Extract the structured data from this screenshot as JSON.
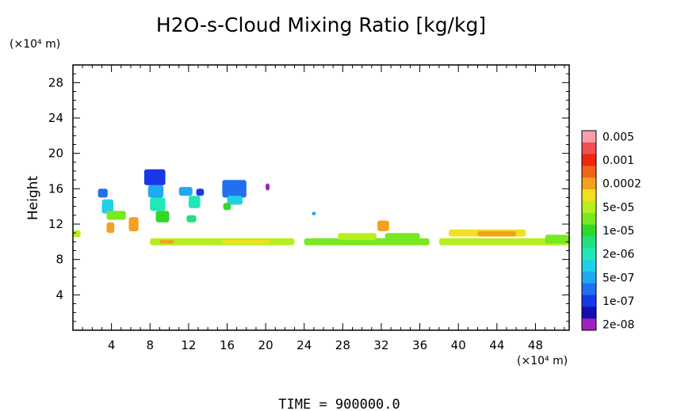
{
  "chart_data": {
    "type": "heatmap",
    "title": "H2O-s-Cloud Mixing Ratio [kg/kg]",
    "ylabel": "Height",
    "x_unit_label": "(×10⁴ m)",
    "y_unit_label": "(×10⁴ m)",
    "xlim": [
      0,
      51.5
    ],
    "ylim": [
      0,
      30
    ],
    "x_ticks": [
      4,
      8,
      12,
      16,
      20,
      24,
      28,
      32,
      36,
      40,
      44,
      48
    ],
    "y_ticks": [
      4,
      8,
      12,
      16,
      20,
      24,
      28
    ],
    "grid": false,
    "footer": "TIME = 900000.0",
    "colorbar": {
      "placement": "right",
      "levels": [
        {
          "label": "0.005",
          "color": "#f5a0a8"
        },
        {
          "label": "",
          "color": "#f05050"
        },
        {
          "label": "0.001",
          "color": "#ee2810"
        },
        {
          "label": "",
          "color": "#f06418"
        },
        {
          "label": "0.0002",
          "color": "#f5a020"
        },
        {
          "label": "",
          "color": "#f0e020"
        },
        {
          "label": "5e-05",
          "color": "#b8ee20"
        },
        {
          "label": "",
          "color": "#78e820"
        },
        {
          "label": "1e-05",
          "color": "#30d828"
        },
        {
          "label": "",
          "color": "#20e080"
        },
        {
          "label": "2e-06",
          "color": "#20e8b8"
        },
        {
          "label": "",
          "color": "#20d0e8"
        },
        {
          "label": "5e-07",
          "color": "#20a8f0"
        },
        {
          "label": "",
          "color": "#2070f0"
        },
        {
          "label": "1e-07",
          "color": "#1838e8"
        },
        {
          "label": "",
          "color": "#1010b0"
        },
        {
          "label": "2e-08",
          "color": "#a020c0"
        }
      ]
    },
    "regions": [
      {
        "x0": 0.0,
        "x1": 0.8,
        "y0": 10.5,
        "y1": 11.3,
        "level": 6
      },
      {
        "x0": 2.6,
        "x1": 3.6,
        "y0": 15.0,
        "y1": 16.0,
        "level": 13
      },
      {
        "x0": 3.0,
        "x1": 4.2,
        "y0": 13.2,
        "y1": 14.8,
        "level": 11
      },
      {
        "x0": 3.5,
        "x1": 5.5,
        "y0": 12.5,
        "y1": 13.5,
        "level": 7
      },
      {
        "x0": 3.5,
        "x1": 4.3,
        "y0": 11.0,
        "y1": 12.2,
        "level": 4
      },
      {
        "x0": 5.8,
        "x1": 6.8,
        "y0": 11.2,
        "y1": 12.8,
        "level": 4
      },
      {
        "x0": 7.4,
        "x1": 9.6,
        "y0": 16.4,
        "y1": 18.2,
        "level": 14
      },
      {
        "x0": 7.8,
        "x1": 9.4,
        "y0": 15.0,
        "y1": 16.4,
        "level": 12
      },
      {
        "x0": 8.0,
        "x1": 9.6,
        "y0": 13.5,
        "y1": 15.0,
        "level": 10
      },
      {
        "x0": 8.6,
        "x1": 10.0,
        "y0": 12.2,
        "y1": 13.5,
        "level": 8
      },
      {
        "x0": 11.0,
        "x1": 12.4,
        "y0": 15.2,
        "y1": 16.2,
        "level": 12
      },
      {
        "x0": 12.8,
        "x1": 13.6,
        "y0": 15.2,
        "y1": 16.0,
        "level": 14
      },
      {
        "x0": 12.0,
        "x1": 13.2,
        "y0": 13.8,
        "y1": 15.2,
        "level": 10
      },
      {
        "x0": 11.8,
        "x1": 12.8,
        "y0": 12.2,
        "y1": 13.0,
        "level": 9
      },
      {
        "x0": 15.5,
        "x1": 18.0,
        "y0": 15.0,
        "y1": 17.0,
        "level": 13
      },
      {
        "x0": 16.0,
        "x1": 17.6,
        "y0": 14.2,
        "y1": 15.2,
        "level": 11
      },
      {
        "x0": 20.0,
        "x1": 20.4,
        "y0": 15.8,
        "y1": 16.6,
        "level": 16
      },
      {
        "x0": 15.6,
        "x1": 16.4,
        "y0": 13.6,
        "y1": 14.4,
        "level": 8
      },
      {
        "x0": 24.8,
        "x1": 25.2,
        "y0": 13.0,
        "y1": 13.4,
        "level": 12
      },
      {
        "x0": 8.0,
        "x1": 23.0,
        "y0": 9.6,
        "y1": 10.4,
        "level": 6
      },
      {
        "x0": 9.0,
        "x1": 10.5,
        "y0": 9.8,
        "y1": 10.2,
        "level": 4
      },
      {
        "x0": 15.5,
        "x1": 20.5,
        "y0": 9.8,
        "y1": 10.2,
        "level": 5
      },
      {
        "x0": 24.0,
        "x1": 37.0,
        "y0": 9.6,
        "y1": 10.4,
        "level": 7
      },
      {
        "x0": 27.5,
        "x1": 31.5,
        "y0": 10.2,
        "y1": 11.0,
        "level": 6
      },
      {
        "x0": 31.6,
        "x1": 32.8,
        "y0": 11.2,
        "y1": 12.4,
        "level": 4
      },
      {
        "x0": 32.4,
        "x1": 36.0,
        "y0": 9.8,
        "y1": 11.0,
        "level": 7
      },
      {
        "x0": 38.0,
        "x1": 51.5,
        "y0": 9.6,
        "y1": 10.4,
        "level": 6
      },
      {
        "x0": 39.0,
        "x1": 47.0,
        "y0": 10.6,
        "y1": 11.4,
        "level": 5
      },
      {
        "x0": 42.0,
        "x1": 46.0,
        "y0": 10.6,
        "y1": 11.2,
        "level": 4
      },
      {
        "x0": 49.0,
        "x1": 51.5,
        "y0": 9.8,
        "y1": 10.8,
        "level": 7
      }
    ]
  }
}
